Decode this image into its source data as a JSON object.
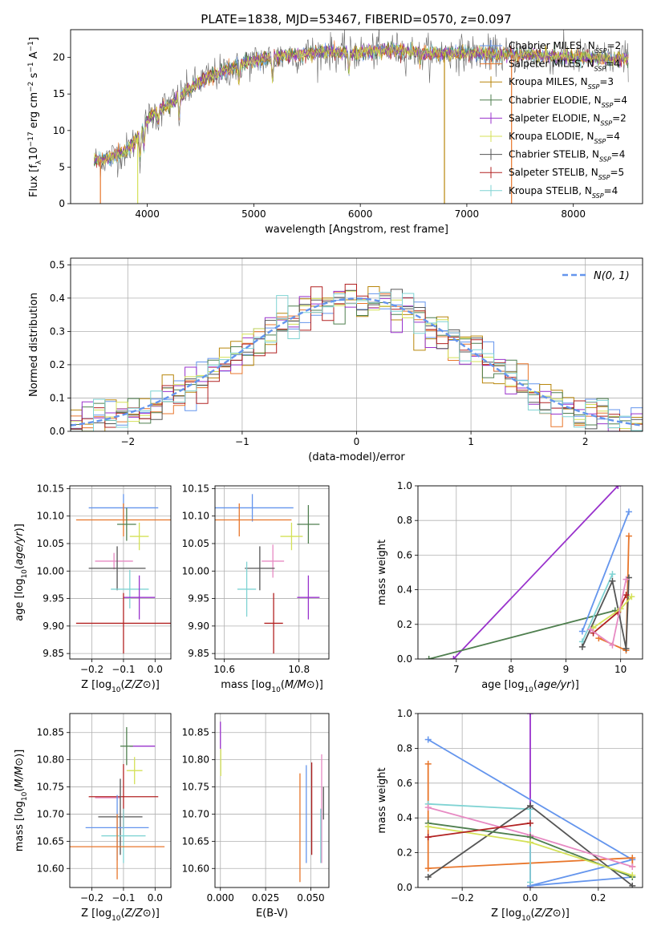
{
  "figure": {
    "title": "PLATE=1838, MJD=53467, FIBERID=0570, z=0.097"
  },
  "colors": {
    "Chabrier MILES": "#6495ed",
    "Salpeter MILES": "#e8762b",
    "Kroupa MILES": "#b8860b",
    "Chabrier ELODIE": "#4f7f4f",
    "Salpeter ELODIE": "#9932cc",
    "Kroupa ELODIE": "#d4e157",
    "Chabrier STELIB": "#555555",
    "Salpeter STELIB": "#b22222",
    "Kroupa STELIB": "#7fd3d3",
    "normal": "#6495ed",
    "pink": "#e78ac3"
  },
  "chart_data": [
    {
      "type": "line",
      "title": "PLATE=1838, MJD=53467, FIBERID=0570, z=0.097",
      "xlabel": "wavelength [Angstrom, rest frame]",
      "ylabel_parts": [
        "Flux [f",
        "λ",
        "10",
        "−17",
        " erg cm",
        "−2",
        " s",
        "−1",
        " A",
        "−1",
        "]"
      ],
      "xlim": [
        3280,
        8650
      ],
      "ylim": [
        0,
        23.8
      ],
      "xticks": [
        4000,
        5000,
        6000,
        7000,
        8000
      ],
      "yticks": [
        0,
        5,
        10,
        15,
        20
      ],
      "legend_location": "right",
      "legend": [
        {
          "label": "Chabrier MILES, N",
          "sub": "SSP",
          "tail": "=2",
          "color": "#6495ed"
        },
        {
          "label": "Salpeter MILES, N",
          "sub": "SSP",
          "tail": "=4",
          "color": "#e8762b"
        },
        {
          "label": "Kroupa MILES, N",
          "sub": "SSP",
          "tail": "=3",
          "color": "#b8860b"
        },
        {
          "label": "Chabrier ELODIE, N",
          "sub": "SSP",
          "tail": "=4",
          "color": "#4f7f4f"
        },
        {
          "label": "Salpeter ELODIE, N",
          "sub": "SSP",
          "tail": "=2",
          "color": "#9932cc"
        },
        {
          "label": "Kroupa ELODIE, N",
          "sub": "SSP",
          "tail": "=4",
          "color": "#d4e157"
        },
        {
          "label": "Chabrier STELIB, N",
          "sub": "SSP",
          "tail": "=4",
          "color": "#555555"
        },
        {
          "label": "Salpeter STELIB, N",
          "sub": "SSP",
          "tail": "=5",
          "color": "#b22222"
        },
        {
          "label": "Kroupa STELIB, N",
          "sub": "SSP",
          "tail": "=4",
          "color": "#7fd3d3"
        }
      ],
      "continuum": {
        "x": [
          3500,
          3650,
          3800,
          3900,
          4000,
          4100,
          4200,
          4300,
          4500,
          4700,
          4900,
          5100,
          5300,
          5500,
          5700,
          5900,
          6100,
          6300,
          6500,
          6700,
          6900,
          7100,
          7300,
          7500,
          7700,
          7900,
          8100,
          8300
        ],
        "y": [
          5.8,
          6.3,
          7.2,
          8.8,
          11.5,
          12.8,
          13.5,
          14.6,
          16.8,
          18.0,
          19.2,
          19.8,
          20.2,
          20.6,
          20.8,
          20.5,
          20.8,
          21.0,
          20.8,
          20.5,
          20.6,
          20.6,
          20.4,
          20.3,
          20.2,
          20.1,
          20.0,
          19.8
        ]
      },
      "dropouts": [
        {
          "x": 3910,
          "y": 0,
          "color": "#d4e157"
        },
        {
          "x": 6790,
          "y": 0,
          "color": "#b8860b"
        },
        {
          "x": 7420,
          "y": 0,
          "color": "#e8762b"
        },
        {
          "x": 3560,
          "y": 0,
          "color": "#e8762b"
        }
      ]
    },
    {
      "type": "histogram",
      "xlabel": "(data-model)/error",
      "ylabel": "Normed distribution",
      "xlim": [
        -2.5,
        2.5
      ],
      "ylim": [
        0,
        0.52
      ],
      "xticks": [
        -2,
        -1,
        0,
        1,
        2
      ],
      "yticks": [
        0.0,
        0.1,
        0.2,
        0.3,
        0.4,
        0.5
      ],
      "legend": {
        "label": "N(0, 1)",
        "location": "top-right"
      },
      "bin_width": 0.1
    },
    {
      "type": "scatter",
      "xlabel": "Z [log10(Z/Z⊙)]",
      "ylabel": "age [log10(age/yr)]",
      "xlim": [
        -0.27,
        0.05
      ],
      "ylim": [
        9.84,
        10.155
      ],
      "xticks": [
        -0.2,
        -0.1,
        0.0
      ],
      "yticks": [
        9.85,
        9.9,
        9.95,
        10.0,
        10.05,
        10.1,
        10.15
      ],
      "points": [
        {
          "series": "Chabrier MILES",
          "x": -0.1,
          "y": 10.115,
          "xerr": 0.11,
          "yerr": 0.025
        },
        {
          "series": "Salpeter MILES",
          "x": -0.1,
          "y": 10.093,
          "xerr": 0.15,
          "yerr": 0.03
        },
        {
          "series": "Kroupa ELODIE",
          "x": -0.05,
          "y": 10.063,
          "xerr": 0.03,
          "yerr": 0.025
        },
        {
          "series": "Chabrier ELODIE",
          "x": -0.09,
          "y": 10.085,
          "xerr": 0.03,
          "yerr": 0.03
        },
        {
          "series": "Pink",
          "x": -0.13,
          "y": 10.018,
          "xerr": 0.06,
          "yerr": 0.015
        },
        {
          "series": "Chabrier STELIB",
          "x": -0.12,
          "y": 10.005,
          "xerr": 0.09,
          "yerr": 0.04
        },
        {
          "series": "Kroupa STELIB",
          "x": -0.08,
          "y": 9.967,
          "xerr": 0.06,
          "yerr": 0.035
        },
        {
          "series": "Salpeter ELODIE",
          "x": -0.05,
          "y": 9.952,
          "xerr": 0.05,
          "yerr": 0.04
        },
        {
          "series": "Salpeter STELIB",
          "x": -0.1,
          "y": 9.905,
          "xerr": 0.15,
          "yerr": 0.055
        }
      ]
    },
    {
      "type": "scatter",
      "xlabel": "mass [log10(M/M⊙)]",
      "ylabel": "",
      "xlim": [
        10.575,
        10.88
      ],
      "ylim": [
        9.84,
        10.155
      ],
      "xticks": [
        10.6,
        10.8
      ],
      "yticks": [
        9.85,
        9.9,
        9.95,
        10.0,
        10.05,
        10.1,
        10.15
      ],
      "points": [
        {
          "series": "Chabrier MILES",
          "x": 10.675,
          "y": 10.115,
          "xerr": 0.11,
          "yerr": 0.025
        },
        {
          "series": "Salpeter MILES",
          "x": 10.64,
          "y": 10.093,
          "xerr": 0.14,
          "yerr": 0.03
        },
        {
          "series": "Kroupa ELODIE",
          "x": 10.78,
          "y": 10.063,
          "xerr": 0.03,
          "yerr": 0.025
        },
        {
          "series": "Chabrier ELODIE",
          "x": 10.825,
          "y": 10.085,
          "xerr": 0.03,
          "yerr": 0.035
        },
        {
          "series": "Pink",
          "x": 10.73,
          "y": 10.018,
          "xerr": 0.03,
          "yerr": 0.03
        },
        {
          "series": "Chabrier STELIB",
          "x": 10.695,
          "y": 10.005,
          "xerr": 0.04,
          "yerr": 0.04
        },
        {
          "series": "Kroupa STELIB",
          "x": 10.66,
          "y": 9.967,
          "xerr": 0.025,
          "yerr": 0.05
        },
        {
          "series": "Salpeter ELODIE",
          "x": 10.825,
          "y": 9.952,
          "xerr": 0.03,
          "yerr": 0.04
        },
        {
          "series": "Salpeter STELIB",
          "x": 10.732,
          "y": 9.905,
          "xerr": 0.025,
          "yerr": 0.055
        }
      ]
    },
    {
      "type": "line",
      "xlabel": "age [log10(age/yr)]",
      "ylabel": "mass weight",
      "xlim": [
        6.3,
        10.4
      ],
      "ylim": [
        0,
        1.0
      ],
      "xticks": [
        7,
        8,
        9,
        10
      ],
      "yticks": [
        0.0,
        0.2,
        0.4,
        0.6,
        0.8,
        1.0
      ],
      "series": [
        {
          "name": "Salpeter ELODIE",
          "x": [
            6.95,
            9.95
          ],
          "y": [
            0.0,
            1.0
          ]
        },
        {
          "name": "Chabrier ELODIE",
          "x": [
            6.5,
            9.9
          ],
          "y": [
            0.0,
            0.28
          ]
        },
        {
          "name": "Chabrier MILES",
          "x": [
            9.3,
            10.15
          ],
          "y": [
            0.16,
            0.85
          ]
        },
        {
          "name": "Salpeter MILES",
          "x": [
            9.6,
            10.1,
            10.15
          ],
          "y": [
            0.12,
            0.05,
            0.71
          ]
        },
        {
          "name": "Kroupa STELIB",
          "x": [
            9.3,
            9.85
          ],
          "y": [
            0.1,
            0.49
          ]
        },
        {
          "name": "Chabrier STELIB",
          "x": [
            9.3,
            9.85,
            10.1,
            10.15
          ],
          "y": [
            0.07,
            0.45,
            0.06,
            0.47
          ]
        },
        {
          "name": "Salpeter STELIB",
          "x": [
            9.5,
            9.95,
            10.1
          ],
          "y": [
            0.15,
            0.27,
            0.37
          ]
        },
        {
          "name": "Kroupa ELODIE",
          "x": [
            9.5,
            10.0,
            10.2
          ],
          "y": [
            0.18,
            0.29,
            0.36
          ]
        },
        {
          "name": "Pink",
          "x": [
            9.45,
            9.85,
            10.1
          ],
          "y": [
            0.17,
            0.08,
            0.46
          ]
        }
      ]
    },
    {
      "type": "scatter",
      "xlabel": "Z [log10(Z/Z⊙)]",
      "ylabel": "mass [log10(M/M⊙)]",
      "xlim": [
        -0.27,
        0.05
      ],
      "ylim": [
        10.565,
        10.885
      ],
      "xticks": [
        -0.2,
        -0.1,
        0.0
      ],
      "yticks": [
        10.6,
        10.65,
        10.7,
        10.75,
        10.8,
        10.85
      ],
      "points": [
        {
          "series": "Salpeter ELODIE",
          "x": -0.04,
          "y": 10.825,
          "xerr": 0.04,
          "yerr": 0.0
        },
        {
          "series": "Chabrier ELODIE",
          "x": -0.09,
          "y": 10.825,
          "xerr": 0.02,
          "yerr": 0.035
        },
        {
          "series": "Kroupa ELODIE",
          "x": -0.065,
          "y": 10.78,
          "xerr": 0.025,
          "yerr": 0.025
        },
        {
          "series": "Salpeter STELIB",
          "x": -0.1,
          "y": 10.732,
          "xerr": 0.11,
          "yerr": 0.06
        },
        {
          "series": "Pink",
          "x": -0.15,
          "y": 10.73,
          "xerr": 0.04,
          "yerr": 0.0
        },
        {
          "series": "Chabrier STELIB",
          "x": -0.11,
          "y": 10.695,
          "xerr": 0.07,
          "yerr": 0.07
        },
        {
          "series": "Chabrier MILES",
          "x": -0.12,
          "y": 10.675,
          "xerr": 0.1,
          "yerr": 0.06
        },
        {
          "series": "Kroupa STELIB",
          "x": -0.1,
          "y": 10.66,
          "xerr": 0.07,
          "yerr": 0.05
        },
        {
          "series": "Salpeter MILES",
          "x": -0.12,
          "y": 10.64,
          "xerr": 0.15,
          "yerr": 0.06
        }
      ]
    },
    {
      "type": "scatter",
      "xlabel": "E(B-V)",
      "ylabel": "",
      "xlim": [
        -0.003,
        0.06
      ],
      "ylim": [
        10.565,
        10.885
      ],
      "xticks": [
        0.0,
        0.025,
        0.05
      ],
      "yticks": [
        10.6,
        10.65,
        10.7,
        10.75,
        10.8,
        10.85
      ],
      "points": [
        {
          "series": "Salpeter ELODIE",
          "x": 0.0,
          "y": 10.845,
          "xerr": 0.0,
          "yerr": 0.025
        },
        {
          "series": "Kroupa ELODIE",
          "x": 0.0002,
          "y": 10.795,
          "xerr": 0.0,
          "yerr": 0.025
        },
        {
          "series": "Salpeter MILES",
          "x": 0.044,
          "y": 10.675,
          "xerr": 0.0,
          "yerr": 0.1
        },
        {
          "series": "Chabrier MILES",
          "x": 0.0475,
          "y": 10.7,
          "xerr": 0.0,
          "yerr": 0.09
        },
        {
          "series": "Salpeter STELIB",
          "x": 0.0505,
          "y": 10.71,
          "xerr": 0.0,
          "yerr": 0.085
        },
        {
          "series": "Pink",
          "x": 0.056,
          "y": 10.71,
          "xerr": 0.0,
          "yerr": 0.1
        },
        {
          "series": "Chabrier STELIB",
          "x": 0.057,
          "y": 10.72,
          "xerr": 0.0,
          "yerr": 0.03
        },
        {
          "series": "Kroupa STELIB",
          "x": 0.0555,
          "y": 10.66,
          "xerr": 0.0,
          "yerr": 0.05
        }
      ]
    },
    {
      "type": "line",
      "xlabel": "Z [log10(Z/Z⊙)]",
      "ylabel": "mass weight",
      "xlim": [
        -0.33,
        0.33
      ],
      "ylim": [
        0,
        1.0
      ],
      "xticks": [
        -0.2,
        0.0,
        0.2
      ],
      "yticks": [
        0.0,
        0.2,
        0.4,
        0.6,
        0.8,
        1.0
      ],
      "series": [
        {
          "name": "Salpeter ELODIE",
          "x": [
            0.0,
            0.0
          ],
          "y": [
            0.0,
            1.0
          ]
        },
        {
          "name": "Chabrier MILES",
          "x": [
            -0.3,
            0.3,
            0.0,
            0.3
          ],
          "y": [
            0.85,
            0.16,
            0.01,
            0.06
          ]
        },
        {
          "name": "Salpeter MILES",
          "x": [
            -0.3,
            -0.3,
            0.3,
            0.3
          ],
          "y": [
            0.71,
            0.11,
            0.17,
            0.12
          ]
        },
        {
          "name": "Kroupa STELIB",
          "x": [
            -0.3,
            0.0,
            0.0
          ],
          "y": [
            0.48,
            0.45,
            0.03
          ]
        },
        {
          "name": "Chabrier STELIB",
          "x": [
            -0.3,
            0.0,
            0.3
          ],
          "y": [
            0.06,
            0.47,
            0.01
          ]
        },
        {
          "name": "Pink",
          "x": [
            -0.3,
            0.0,
            0.3
          ],
          "y": [
            0.46,
            0.3,
            0.12
          ]
        },
        {
          "name": "Chabrier ELODIE",
          "x": [
            -0.3,
            0.0,
            0.3
          ],
          "y": [
            0.37,
            0.29,
            0.06
          ]
        },
        {
          "name": "Kroupa ELODIE",
          "x": [
            -0.3,
            0.0,
            0.3
          ],
          "y": [
            0.35,
            0.26,
            0.07
          ]
        },
        {
          "name": "Salpeter STELIB",
          "x": [
            -0.3,
            0.0
          ],
          "y": [
            0.29,
            0.37
          ]
        }
      ]
    }
  ]
}
